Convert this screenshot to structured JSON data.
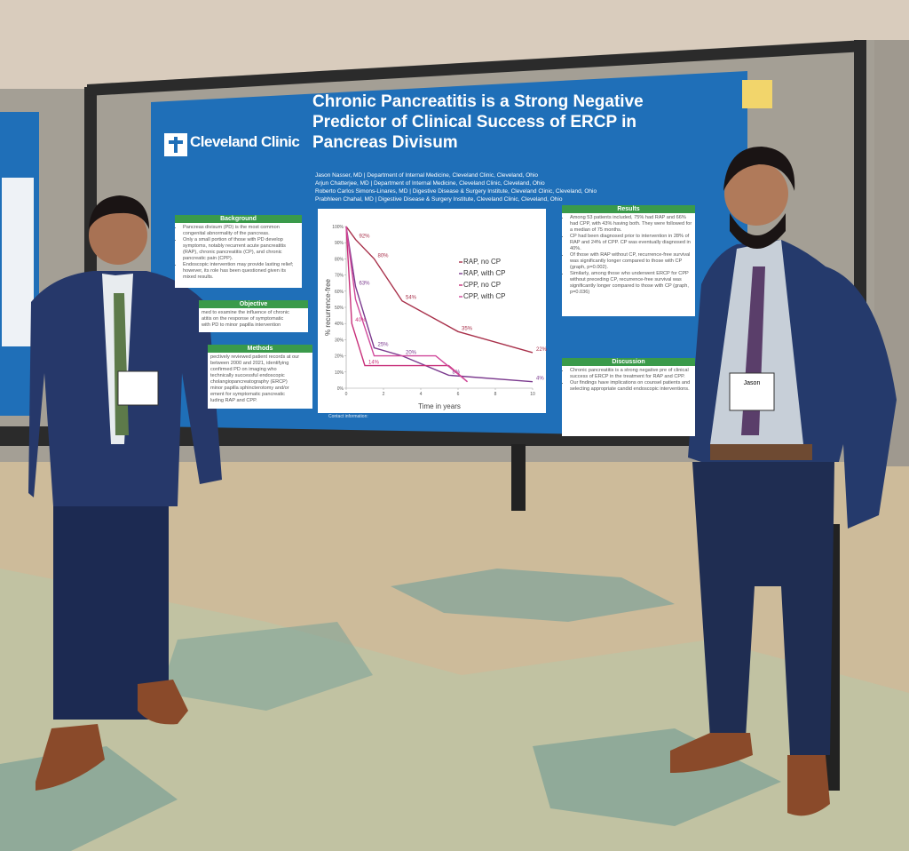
{
  "poster": {
    "logo": "Cleveland Clinic",
    "title": "Chronic Pancreatitis is a Strong Negative Predictor of Clinical Success of ERCP in Pancreas Divisum",
    "authors": [
      "Jason Nasser, MD  |  Department of Internal Medicine, Cleveland Clinic, Cleveland, Ohio",
      "Arjun Chatterjee, MD  |  Department of Internal Medicine, Cleveland Clinic, Cleveland, Ohio",
      "Roberto Carlos Simons-Linares, MD  |  Digestive Disease & Surgery Institute, Cleveland Clinic, Cleveland, Ohio",
      "Prabhleen Chahal, MD  |  Digestive Disease & Surgery Institute, Cleveland Clinic, Cleveland, Ohio"
    ],
    "background": {
      "heading": "Background",
      "bullets": [
        "Pancreas divisum (PD) is the most common congenital abnormality of the pancreas.",
        "Only a small portion of those with PD develop symptoms, notably recurrent acute pancreatitis (RAP), chronic pancreatitis (CP), and chronic pancreatic pain (CPP).",
        "Endoscopic intervention may provide lasting relief; however, its role has been questioned given its mixed results."
      ]
    },
    "objective": {
      "heading": "Objective",
      "lines": [
        "med to examine the influence of chronic",
        "atitis on the response of symptomatic",
        "with PD to minor papilla intervention"
      ]
    },
    "methods": {
      "heading": "Methods",
      "lines": [
        "pectively reviewed patient records at our",
        "between 2000 and 2021, identifying",
        "confirmed PD on imaging who",
        "technically successful endoscopic",
        "cholangiopancreatography (ERCP)",
        "minor papilla sphincterotomy and/or",
        "ement for symptomatic pancreatic",
        "luding RAP and CPP."
      ]
    },
    "results": {
      "heading": "Results",
      "bullets": [
        "Among 53 patients included, 75% had RAP and 66% had CPP, with 43% having both. They were followed for a median of 75 months.",
        "CP had been diagnosed prior to intervention in 28% of RAP and 24% of CPP. CP was eventually diagnosed in 40%.",
        "Of those with RAP without CP, recurrence-free survival was significantly longer compared to those with CP (graph, p=0.002).",
        "Similarly, among those who underwent ERCP for CPP without preceding CP, recurrence-free survival was significantly longer compared to those with CP (graph, p=0.036)"
      ]
    },
    "discussion": {
      "heading": "Discussion",
      "bullets": [
        "Chronic pancreatitis is a strong negative pre of clinical success of ERCP in the treatment for RAP and CPP.",
        "Our findings have implications on counsel patients and selecting appropriate candid endoscopic interventions."
      ]
    },
    "contact": "Contact information:",
    "graph": {
      "y_label": "% recurrence-free",
      "x_label": "Time in years",
      "xlim": [
        0,
        10
      ],
      "ylim": [
        0,
        100
      ],
      "xticks": [
        0,
        2,
        4,
        6,
        8,
        10
      ],
      "yticks": [
        {
          "value": 100,
          "label": "100%"
        },
        {
          "value": 90,
          "label": "90%"
        },
        {
          "value": 80,
          "label": "80%"
        },
        {
          "value": 70,
          "label": "70%"
        },
        {
          "value": 60,
          "label": "60%"
        },
        {
          "value": 50,
          "label": "50%"
        },
        {
          "value": 40,
          "label": "40%"
        },
        {
          "value": 30,
          "label": "30%"
        },
        {
          "value": 20,
          "label": "20%"
        },
        {
          "value": 10,
          "label": "10%"
        },
        {
          "value": 0,
          "label": "0%"
        }
      ],
      "series": [
        {
          "name": "RAP, no CP",
          "color": "#a8304a",
          "x": [
            0,
            0.5,
            1.5,
            3,
            6,
            10
          ],
          "values": [
            100,
            92,
            80,
            54,
            35,
            22
          ],
          "value_labels": [
            null,
            "92%",
            "80%",
            "54%",
            "35%",
            "22%"
          ]
        },
        {
          "name": "RAP, with CP",
          "color": "#7b3a8e",
          "x": [
            0,
            0.5,
            1.5,
            3,
            5.5,
            10
          ],
          "values": [
            100,
            63,
            25,
            20,
            8,
            4
          ],
          "value_labels": [
            null,
            "63%",
            "25%",
            "20%",
            "8%",
            "4%"
          ]
        },
        {
          "name": "CPP, no CP",
          "color": "#c8307a",
          "x": [
            0,
            0.3,
            1,
            5.5,
            6.5
          ],
          "values": [
            100,
            40,
            14,
            14,
            4
          ],
          "value_labels": [
            null,
            "40%",
            "14%",
            null,
            null
          ]
        },
        {
          "name": "CPP, with CP",
          "color": "#d0489a",
          "x": [
            0,
            0.5,
            1.5,
            4.8,
            6.5
          ],
          "values": [
            100,
            55,
            20,
            20,
            4
          ],
          "value_labels": [
            null,
            null,
            null,
            null,
            null
          ]
        }
      ]
    }
  },
  "badges": [
    "Jason"
  ]
}
